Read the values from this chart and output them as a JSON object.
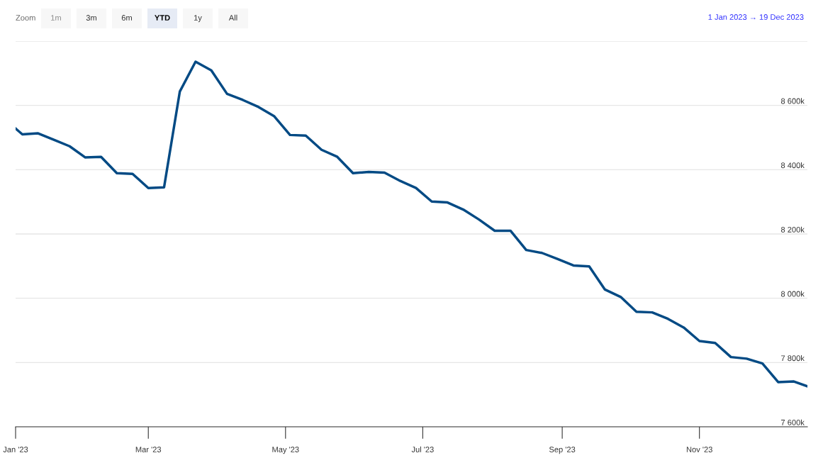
{
  "chart_data": {
    "type": "line",
    "subtitle": "1 Jan 2023 → 19 Dec 2023",
    "annotations": [
      "Zoom",
      "1m",
      "3m",
      "6m",
      "YTD",
      "1y",
      "All"
    ],
    "x": [
      "2023-01-01",
      "2023-01-04",
      "2023-01-11",
      "2023-01-18",
      "2023-01-25",
      "2023-02-01",
      "2023-02-08",
      "2023-02-15",
      "2023-02-22",
      "2023-03-01",
      "2023-03-08",
      "2023-03-15",
      "2023-03-22",
      "2023-03-29",
      "2023-04-05",
      "2023-04-12",
      "2023-04-19",
      "2023-04-26",
      "2023-05-03",
      "2023-05-10",
      "2023-05-17",
      "2023-05-24",
      "2023-05-31",
      "2023-06-07",
      "2023-06-14",
      "2023-06-21",
      "2023-06-28",
      "2023-07-05",
      "2023-07-12",
      "2023-07-19",
      "2023-07-26",
      "2023-08-02",
      "2023-08-09",
      "2023-08-16",
      "2023-08-23",
      "2023-08-30",
      "2023-09-06",
      "2023-09-13",
      "2023-09-20",
      "2023-09-27",
      "2023-10-04",
      "2023-10-11",
      "2023-10-18",
      "2023-10-25",
      "2023-11-01",
      "2023-11-08",
      "2023-11-15",
      "2023-11-22",
      "2023-11-29",
      "2023-12-06",
      "2023-12-13",
      "2023-12-19"
    ],
    "series": [
      {
        "color": "#034a84",
        "values": [
          8528,
          8510,
          8513,
          8493,
          8473,
          8438,
          8440,
          8389,
          8387,
          8343,
          8345,
          8643,
          8736,
          8709,
          8636,
          8617,
          8595,
          8566,
          8508,
          8506,
          8462,
          8440,
          8389,
          8393,
          8391,
          8365,
          8343,
          8301,
          8298,
          8276,
          8245,
          8210,
          8210,
          8150,
          8141,
          8122,
          8102,
          8099,
          8027,
          8004,
          7958,
          7956,
          7936,
          7909,
          7867,
          7861,
          7817,
          7812,
          7797,
          7739,
          7741,
          7726
        ]
      }
    ],
    "xlim": [
      "2023-01-01",
      "2023-12-19"
    ],
    "xticks": [
      {
        "value": "2023-01-01",
        "label": "Jan '23"
      },
      {
        "value": "2023-03-01",
        "label": "Mar '23"
      },
      {
        "value": "2023-05-01",
        "label": "May '23"
      },
      {
        "value": "2023-07-01",
        "label": "Jul '23"
      },
      {
        "value": "2023-09-01",
        "label": "Sep '23"
      },
      {
        "value": "2023-11-01",
        "label": "Nov '23"
      }
    ],
    "ylim": [
      7600,
      8800
    ],
    "yticks": [
      {
        "value": 7600,
        "label": "7 600k"
      },
      {
        "value": 7800,
        "label": "7 800k"
      },
      {
        "value": 8000,
        "label": "8 000k"
      },
      {
        "value": 8200,
        "label": "8 200k"
      },
      {
        "value": 8400,
        "label": "8 400k"
      },
      {
        "value": 8600,
        "label": "8 600k"
      },
      {
        "value": 8800,
        "label": null
      }
    ],
    "grid": "y",
    "legend": false,
    "marker": "none",
    "line_style": "solid"
  }
}
